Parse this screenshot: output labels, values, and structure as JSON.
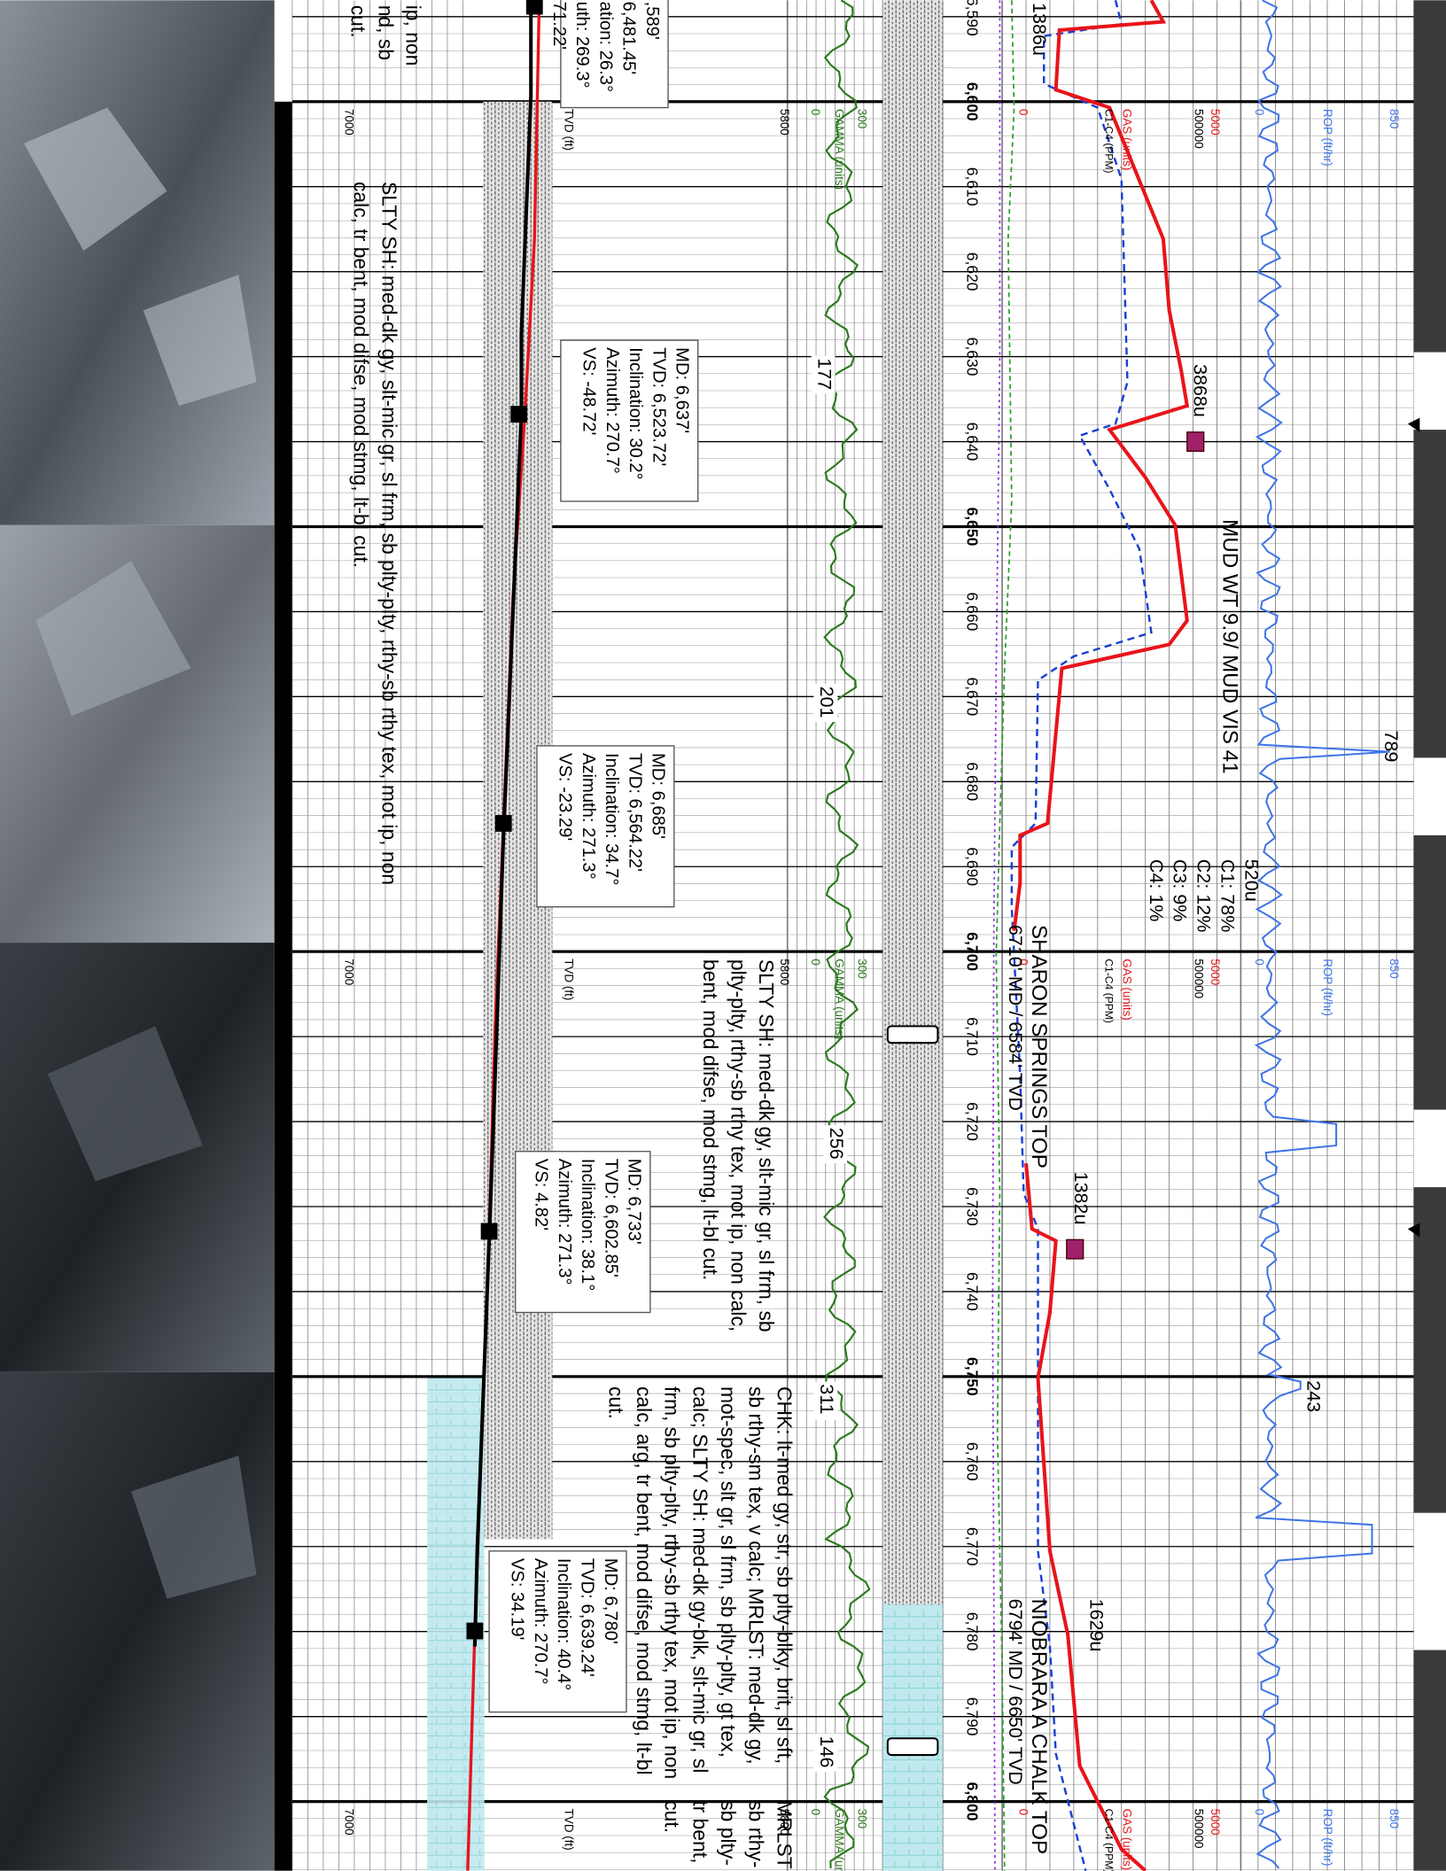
{
  "depths": [
    {
      "value": 6590,
      "label": "6,590"
    },
    {
      "value": 6600,
      "label": "6,600"
    },
    {
      "value": 6610,
      "label": "6,610"
    },
    {
      "value": 6620,
      "label": "6,620"
    },
    {
      "value": 6630,
      "label": "6,630"
    },
    {
      "value": 6640,
      "label": "6,640"
    },
    {
      "value": 6650,
      "label": "6,650"
    },
    {
      "value": 6660,
      "label": "6,660"
    },
    {
      "value": 6670,
      "label": "6,670"
    },
    {
      "value": 6680,
      "label": "6,680"
    },
    {
      "value": 6690,
      "label": "6,690"
    },
    {
      "value": 6700,
      "label": "6,700"
    },
    {
      "value": 6710,
      "label": "6,710"
    },
    {
      "value": 6720,
      "label": "6,720"
    },
    {
      "value": 6730,
      "label": "6,730"
    },
    {
      "value": 6740,
      "label": "6,740"
    },
    {
      "value": 6750,
      "label": "6,750"
    },
    {
      "value": 6760,
      "label": "6,760"
    },
    {
      "value": 6770,
      "label": "6,770"
    },
    {
      "value": 6780,
      "label": "6,780"
    },
    {
      "value": 6790,
      "label": "6,790"
    },
    {
      "value": 6800,
      "label": "6,800"
    }
  ],
  "headers": {
    "gamma_min": "0",
    "gamma_max": "300",
    "gamma_label": "GAMMA (units)",
    "gamma_left": "5800",
    "gas_min": "0",
    "gas_max": "5000",
    "ppm_max": "500000",
    "gas_label": "GAS (units)",
    "ppm_label": "C1-C4 (PPM)",
    "rop_min": "0",
    "rop_max": "850",
    "rop_label": "ROP (ft/hr)",
    "tvd_label": "TVD (ft)",
    "tvd_value": "7000"
  },
  "surveys": [
    [
      ",589'",
      "6,481.45'",
      "ation: 26.3°",
      "uth: 269.3°",
      "71.22'"
    ],
    [
      "MD: 6,637'",
      "TVD: 6,523.72'",
      "Inclination: 30.2°",
      "Azimuth: 270.7°",
      "VS: -48.72'"
    ],
    [
      "MD: 6,685'",
      "TVD: 6,564.22'",
      "Inclination: 34.7°",
      "Azimuth: 271.3°",
      "VS: -23.29'"
    ],
    [
      "MD: 6,733'",
      "TVD: 6,602.85'",
      "Inclination: 38.1°",
      "Azimuth: 271.3°",
      "VS: 4.82'"
    ],
    [
      "MD: 6,780'",
      "TVD: 6,639.24'",
      "Inclination: 40.4°",
      "Azimuth: 270.7°",
      "VS: 34.19'"
    ]
  ],
  "descriptions": [
    [
      "ip, non",
      "nd, sb",
      "cut."
    ],
    [
      "SLTY SH: med-dk gy, slt-mic gr, sl frm, sb plty-plty, rthy-sb rthy tex, mot ip, non",
      "calc, tr bent, mod difse, mod stmg, lt-bl cut."
    ],
    [
      "SLTY SH: med-dk gy, slt-mic gr, sl frm, sb",
      "plty-plty, rthy-sb rthy tex, mot ip, non calc,",
      "bent, mod difse, mod stmg, lt-bl cut."
    ],
    [
      "CHK: lt-med gy, str, sb plty-blky, brit, sl sft,",
      "sb rthy-sm tex, v calc; MRLST: med-dk gy,",
      "mot-spec, slt gr, sl frm, sb plty-plty, gt tex,",
      "calc; SLTY SH: med-dk gy-blk, slt-mic gr, sl",
      "frm, sb plty-plty, rthy-sb rthy tex, mot ip, non",
      "calc, arg, tr bent, mod difse, mod stmg, lt-bl",
      "cut."
    ],
    [
      "MRLST",
      "sb rthy-",
      "sb plty-",
      "tr bent,",
      "cut."
    ]
  ],
  "annotations": {
    "gas_1386": "1386u",
    "gas_3868": "3868u",
    "mud": "MUD WT 9.9/ MUD VIS 41",
    "rop_789": "789",
    "gas_520": "520u",
    "c1": "C1: 78%",
    "c2": "C2: 12%",
    "c3": "C3: 9%",
    "c4": "C4: 1%",
    "sharon": "SHARON SPRINGS TOP",
    "sharon_depth": "6710' MD / 6584' TVD",
    "gas_1382": "1382u",
    "rop_243": "243",
    "gas_1629": "1629u",
    "niobrara": "NIOBRARA A CHALK TOP",
    "niobrara_depth": "6794' MD / 6650' TVD",
    "gamma_177": "177",
    "gamma_201": "201",
    "gamma_256": "256",
    "gamma_311": "311",
    "gamma_146": "146"
  }
}
